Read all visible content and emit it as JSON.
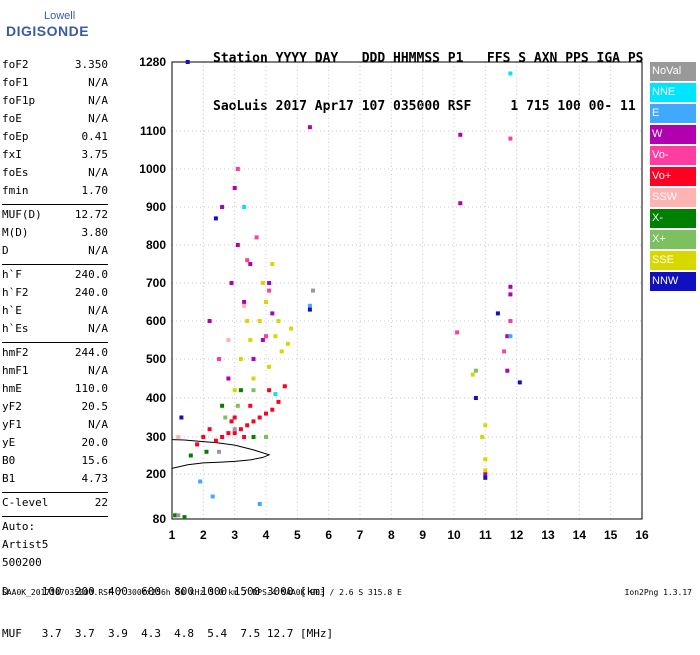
{
  "logo": {
    "line1": "Lowell",
    "line2": "DIGISONDE"
  },
  "header": {
    "line1": "Station YYYY DAY   DDD HHMMSS P1   FFS S AXN PPS IGA PS",
    "line2": "SaoLuis 2017 Apr17 107 035000 RSF     1 715 100 00- 11"
  },
  "params": [
    {
      "label": "foF2",
      "value": "3.350"
    },
    {
      "label": "foF1",
      "value": "N/A"
    },
    {
      "label": "foF1p",
      "value": "N/A"
    },
    {
      "label": "foE",
      "value": "N/A"
    },
    {
      "label": "foEp",
      "value": "0.41"
    },
    {
      "label": "fxI",
      "value": "3.75"
    },
    {
      "label": "foEs",
      "value": "N/A"
    },
    {
      "label": "fmin",
      "value": "1.70"
    },
    {
      "label": "MUF(D)",
      "value": "12.72"
    },
    {
      "label": "M(D)",
      "value": "3.80"
    },
    {
      "label": "D",
      "value": "N/A"
    },
    {
      "label": "h`F",
      "value": "240.0"
    },
    {
      "label": "h`F2",
      "value": "240.0"
    },
    {
      "label": "h`E",
      "value": "N/A"
    },
    {
      "label": "h`Es",
      "value": "N/A"
    },
    {
      "label": "hmF2",
      "value": "244.0"
    },
    {
      "label": "hmF1",
      "value": "N/A"
    },
    {
      "label": "hmE",
      "value": "110.0"
    },
    {
      "label": "yF2",
      "value": "20.5"
    },
    {
      "label": "yF1",
      "value": "N/A"
    },
    {
      "label": "yE",
      "value": "20.0"
    },
    {
      "label": "B0",
      "value": "15.6"
    },
    {
      "label": "B1",
      "value": "4.73"
    },
    {
      "label": "C-level",
      "value": "22"
    },
    {
      "label": "Auto:",
      "value": ""
    },
    {
      "label": "Artist5",
      "value": ""
    },
    {
      "label": "500200",
      "value": ""
    }
  ],
  "legend": [
    {
      "label": "NoVal",
      "color": "#999999"
    },
    {
      "label": "NNE",
      "color": "#00e5ff"
    },
    {
      "label": "E",
      "color": "#3fa9ff"
    },
    {
      "label": "W",
      "color": "#b000b0"
    },
    {
      "label": "Vo-",
      "color": "#ff3ca0"
    },
    {
      "label": "Vo+",
      "color": "#ff0022"
    },
    {
      "label": "SSW",
      "color": "#ffb3b3"
    },
    {
      "label": "X-",
      "color": "#008000"
    },
    {
      "label": "X+",
      "color": "#7cc060"
    },
    {
      "label": "SSE",
      "color": "#d8d800"
    },
    {
      "label": "NNW",
      "color": "#1010c0"
    }
  ],
  "footer": {
    "row1": "D     100  200  400  600  800 1000 1500 3000 [km]",
    "row2": "MUF   3.7  3.7  3.9  4.3  4.8  5.4  7.5 12.7 [MHz]",
    "filename": "SAA0K_2017107035000.RSF / 300fx256h 50 kHz 5.0 km / DPS-4 SAA0K 903 / 2.6 S 315.8 E",
    "version": "Ion2Png 1.3.17"
  },
  "chart_data": {
    "type": "scatter",
    "xlim": [
      1,
      16
    ],
    "xticks": [
      1,
      2,
      3,
      4,
      5,
      6,
      7,
      8,
      9,
      10,
      11,
      12,
      13,
      14,
      15,
      16
    ],
    "yticks": [
      80,
      200,
      300,
      400,
      500,
      600,
      700,
      800,
      900,
      1000,
      1100,
      1280
    ],
    "grid": true,
    "series": [
      {
        "name": "W",
        "points": [
          [
            2.2,
            600
          ],
          [
            2.6,
            900
          ],
          [
            2.9,
            700
          ],
          [
            3.1,
            800
          ],
          [
            3.3,
            650
          ],
          [
            3.5,
            750
          ],
          [
            3.9,
            550
          ],
          [
            4.1,
            700
          ],
          [
            2.8,
            450
          ],
          [
            3.6,
            500
          ],
          [
            4.2,
            620
          ],
          [
            5.4,
            1110
          ],
          [
            10.2,
            1090
          ],
          [
            10.2,
            910
          ],
          [
            11.8,
            690
          ],
          [
            11.8,
            670
          ],
          [
            11.7,
            470
          ],
          [
            11.0,
            200
          ],
          [
            11.7,
            560
          ],
          [
            3.0,
            950
          ]
        ]
      },
      {
        "name": "Vo+",
        "points": [
          [
            1.8,
            280
          ],
          [
            2.0,
            300
          ],
          [
            2.4,
            290
          ],
          [
            2.6,
            300
          ],
          [
            2.8,
            310
          ],
          [
            3.0,
            310
          ],
          [
            3.2,
            320
          ],
          [
            3.4,
            330
          ],
          [
            3.6,
            340
          ],
          [
            3.8,
            350
          ],
          [
            4.0,
            360
          ],
          [
            4.2,
            370
          ],
          [
            4.4,
            390
          ],
          [
            2.2,
            320
          ],
          [
            3.0,
            350
          ],
          [
            3.5,
            380
          ],
          [
            4.1,
            420
          ],
          [
            3.3,
            300
          ],
          [
            2.9,
            340
          ],
          [
            4.6,
            430
          ]
        ]
      },
      {
        "name": "SSE",
        "points": [
          [
            3.2,
            500
          ],
          [
            3.5,
            550
          ],
          [
            3.8,
            600
          ],
          [
            4.0,
            650
          ],
          [
            4.3,
            560
          ],
          [
            4.5,
            520
          ],
          [
            4.7,
            540
          ],
          [
            3.6,
            450
          ],
          [
            4.1,
            480
          ],
          [
            4.4,
            600
          ],
          [
            3.9,
            700
          ],
          [
            3.0,
            420
          ],
          [
            4.8,
            580
          ],
          [
            10.6,
            460
          ],
          [
            10.9,
            300
          ],
          [
            11.0,
            330
          ],
          [
            11.0,
            240
          ],
          [
            11.0,
            210
          ],
          [
            4.2,
            750
          ],
          [
            3.4,
            600
          ]
        ]
      },
      {
        "name": "Vo-",
        "points": [
          [
            3.1,
            1000
          ],
          [
            3.4,
            760
          ],
          [
            4.1,
            680
          ],
          [
            10.1,
            570
          ],
          [
            11.6,
            520
          ],
          [
            11.8,
            1080
          ],
          [
            11.8,
            600
          ],
          [
            2.5,
            500
          ],
          [
            3.7,
            820
          ],
          [
            4.0,
            560
          ]
        ]
      },
      {
        "name": "NNE",
        "points": [
          [
            11.8,
            1250
          ],
          [
            3.3,
            900
          ],
          [
            4.3,
            410
          ]
        ]
      },
      {
        "name": "E",
        "points": [
          [
            5.4,
            640
          ],
          [
            11.8,
            560
          ],
          [
            1.9,
            180
          ],
          [
            2.3,
            140
          ],
          [
            3.8,
            120
          ]
        ]
      },
      {
        "name": "NNW",
        "points": [
          [
            5.4,
            630
          ],
          [
            11.4,
            620
          ],
          [
            10.7,
            400
          ],
          [
            12.1,
            440
          ],
          [
            11.0,
            190
          ],
          [
            1.5,
            1280
          ],
          [
            2.4,
            870
          ],
          [
            1.3,
            350
          ]
        ]
      },
      {
        "name": "X-",
        "points": [
          [
            1.1,
            90
          ],
          [
            1.4,
            85
          ],
          [
            1.6,
            250
          ],
          [
            2.1,
            260
          ],
          [
            2.6,
            380
          ],
          [
            3.2,
            420
          ],
          [
            3.6,
            300
          ]
        ]
      },
      {
        "name": "X+",
        "points": [
          [
            2.7,
            350
          ],
          [
            3.1,
            380
          ],
          [
            3.6,
            420
          ],
          [
            10.7,
            470
          ],
          [
            4.0,
            300
          ]
        ]
      },
      {
        "name": "SSW",
        "points": [
          [
            2.8,
            550
          ],
          [
            3.3,
            640
          ],
          [
            1.2,
            300
          ]
        ]
      },
      {
        "name": "NoVal",
        "points": [
          [
            3.0,
            320
          ],
          [
            2.5,
            260
          ],
          [
            1.2,
            90
          ],
          [
            5.5,
            680
          ]
        ]
      }
    ],
    "trace": {
      "name": "",
      "points": [
        [
          1.0,
          215
        ],
        [
          1.5,
          225
        ],
        [
          2.0,
          230
        ],
        [
          2.5,
          232
        ],
        [
          3.0,
          234
        ],
        [
          3.5,
          238
        ],
        [
          3.9,
          245
        ],
        [
          4.1,
          252
        ],
        [
          3.6,
          265
        ],
        [
          3.0,
          278
        ],
        [
          2.4,
          285
        ],
        [
          1.8,
          289
        ],
        [
          1.4,
          292
        ],
        [
          1.0,
          293
        ]
      ]
    }
  }
}
